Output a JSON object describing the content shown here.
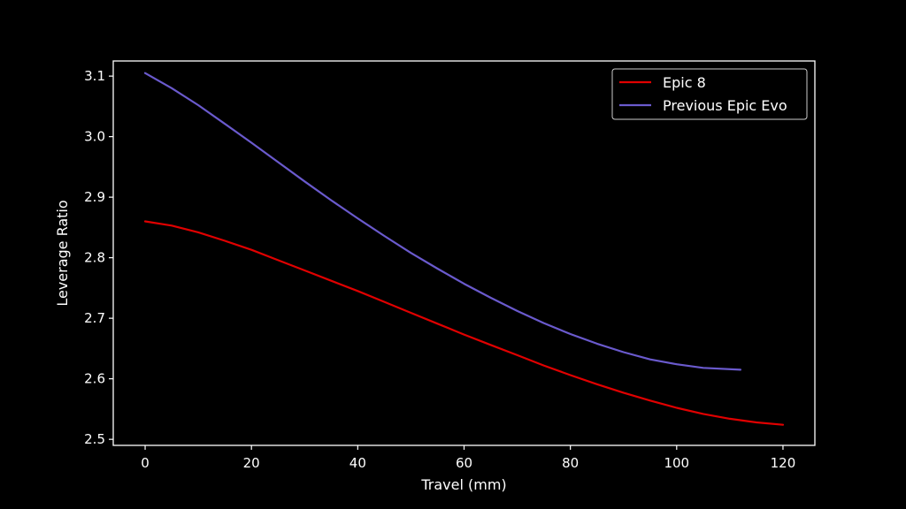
{
  "chart_data": {
    "type": "line",
    "title": "",
    "xlabel": "Travel (mm)",
    "ylabel": "Leverage Ratio",
    "xlim": [
      -6,
      126
    ],
    "ylim": [
      2.49,
      3.125
    ],
    "xticks": [
      0,
      20,
      40,
      60,
      80,
      100,
      120
    ],
    "yticks": [
      2.5,
      2.6,
      2.7,
      2.8,
      2.9,
      3.0,
      3.1
    ],
    "xtick_labels": [
      "0",
      "20",
      "40",
      "60",
      "80",
      "100",
      "120"
    ],
    "ytick_labels": [
      "2.5",
      "2.6",
      "2.7",
      "2.8",
      "2.9",
      "3.0",
      "3.1"
    ],
    "legend_position": "top-right",
    "grid": false,
    "series": [
      {
        "name": "Epic 8",
        "color": "#e00000",
        "x": [
          0,
          5,
          10,
          15,
          20,
          25,
          30,
          35,
          40,
          45,
          50,
          55,
          60,
          65,
          70,
          75,
          80,
          85,
          90,
          95,
          100,
          105,
          110,
          115,
          120
        ],
        "y": [
          2.86,
          2.853,
          2.842,
          2.828,
          2.813,
          2.796,
          2.779,
          2.762,
          2.745,
          2.727,
          2.709,
          2.691,
          2.673,
          2.656,
          2.639,
          2.622,
          2.606,
          2.591,
          2.577,
          2.564,
          2.552,
          2.542,
          2.534,
          2.528,
          2.524
        ]
      },
      {
        "name": "Previous Epic Evo",
        "color": "#6a5acd",
        "x": [
          0,
          5,
          10,
          15,
          20,
          25,
          30,
          35,
          40,
          45,
          50,
          55,
          60,
          65,
          70,
          75,
          80,
          85,
          90,
          95,
          100,
          105,
          112
        ],
        "y": [
          3.105,
          3.08,
          3.052,
          3.021,
          2.99,
          2.958,
          2.926,
          2.895,
          2.865,
          2.836,
          2.808,
          2.782,
          2.757,
          2.734,
          2.712,
          2.692,
          2.674,
          2.658,
          2.644,
          2.632,
          2.624,
          2.618,
          2.615
        ]
      }
    ]
  }
}
